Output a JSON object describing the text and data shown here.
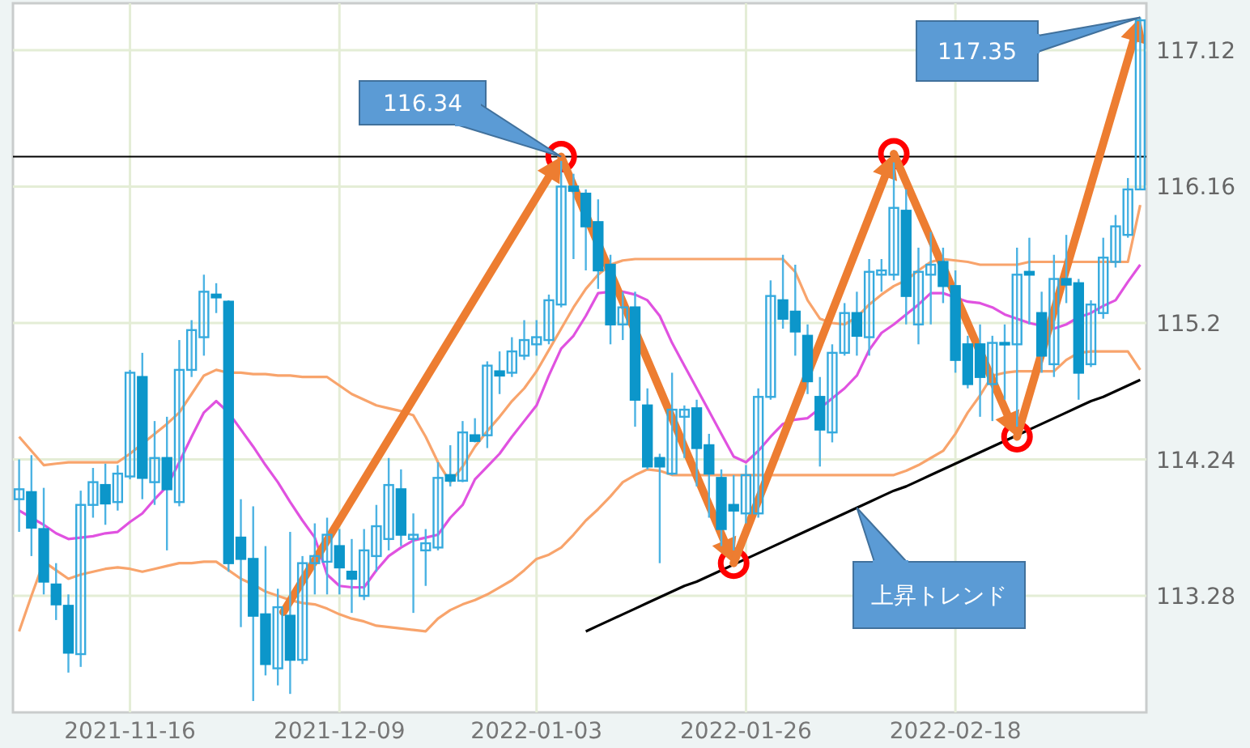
{
  "chart_data": {
    "type": "candlestick",
    "categories": [
      null,
      null,
      null,
      null,
      null,
      null,
      null,
      null,
      null,
      "2021-11-16",
      null,
      null,
      null,
      null,
      null,
      null,
      null,
      null,
      null,
      null,
      null,
      null,
      null,
      null,
      null,
      null,
      "2021-12-09",
      null,
      null,
      null,
      null,
      null,
      null,
      null,
      null,
      null,
      null,
      null,
      null,
      null,
      null,
      null,
      "2022-01-03",
      null,
      null,
      null,
      null,
      null,
      null,
      null,
      null,
      null,
      null,
      null,
      null,
      null,
      null,
      null,
      null,
      "2022-01-26",
      null,
      null,
      null,
      null,
      null,
      null,
      null,
      null,
      null,
      null,
      null,
      null,
      null,
      null,
      null,
      null,
      "2022-02-18",
      null,
      null,
      null,
      null,
      null,
      null,
      null,
      null,
      null,
      null,
      null,
      null,
      null,
      null,
      null
    ],
    "ohlc": [
      [
        113.96,
        114.24,
        113.73,
        114.03
      ],
      [
        114.01,
        114.27,
        113.56,
        113.76
      ],
      [
        113.75,
        114.04,
        113.29,
        113.38
      ],
      [
        113.36,
        113.51,
        113.11,
        113.22
      ],
      [
        113.21,
        113.29,
        112.74,
        112.88
      ],
      [
        112.87,
        114.02,
        112.78,
        113.92
      ],
      [
        113.92,
        114.18,
        113.83,
        114.08
      ],
      [
        114.06,
        114.21,
        113.78,
        113.93
      ],
      [
        113.94,
        114.2,
        113.88,
        114.14
      ],
      [
        114.12,
        114.87,
        114.1,
        114.85
      ],
      [
        114.82,
        114.99,
        113.96,
        114.11
      ],
      [
        114.08,
        114.51,
        113.92,
        114.25
      ],
      [
        114.25,
        114.54,
        113.6,
        114.03
      ],
      [
        113.94,
        115.08,
        113.91,
        114.87
      ],
      [
        114.87,
        115.22,
        114.82,
        115.15
      ],
      [
        115.1,
        115.54,
        114.97,
        115.42
      ],
      [
        115.4,
        115.48,
        115.27,
        115.38
      ],
      [
        115.35,
        115.36,
        113.45,
        113.51
      ],
      [
        113.69,
        113.96,
        113.06,
        113.54
      ],
      [
        113.54,
        113.91,
        112.54,
        113.14
      ],
      [
        113.15,
        113.63,
        112.72,
        112.8
      ],
      [
        112.77,
        113.33,
        112.65,
        113.2
      ],
      [
        113.14,
        113.73,
        112.59,
        112.83
      ],
      [
        112.83,
        113.56,
        112.8,
        113.51
      ],
      [
        113.51,
        113.79,
        113.29,
        113.56
      ],
      [
        113.52,
        113.83,
        113.29,
        113.71
      ],
      [
        113.63,
        113.75,
        113.29,
        113.48
      ],
      [
        113.45,
        113.68,
        113.16,
        113.4
      ],
      [
        113.28,
        113.75,
        113.25,
        113.6
      ],
      [
        113.56,
        113.92,
        113.45,
        113.77
      ],
      [
        113.68,
        114.25,
        113.6,
        114.06
      ],
      [
        114.03,
        114.17,
        113.63,
        113.71
      ],
      [
        113.68,
        113.86,
        113.16,
        113.71
      ],
      [
        113.6,
        113.75,
        113.35,
        113.65
      ],
      [
        113.62,
        114.22,
        113.6,
        114.11
      ],
      [
        114.13,
        114.34,
        114.05,
        114.09
      ],
      [
        114.09,
        114.51,
        114.08,
        114.43
      ],
      [
        114.41,
        114.53,
        114.36,
        114.37
      ],
      [
        114.41,
        114.93,
        114.32,
        114.9
      ],
      [
        114.86,
        115.0,
        114.7,
        114.83
      ],
      [
        114.85,
        115.1,
        114.82,
        115.0
      ],
      [
        114.97,
        115.22,
        114.94,
        115.08
      ],
      [
        115.05,
        115.22,
        114.97,
        115.1
      ],
      [
        115.08,
        115.4,
        115.05,
        115.36
      ],
      [
        115.33,
        116.34,
        115.31,
        116.16
      ],
      [
        116.16,
        116.25,
        115.65,
        116.13
      ],
      [
        116.11,
        116.14,
        115.57,
        115.88
      ],
      [
        115.91,
        116.07,
        115.44,
        115.57
      ],
      [
        115.61,
        115.68,
        115.05,
        115.19
      ],
      [
        115.19,
        115.42,
        115.08,
        115.31
      ],
      [
        115.31,
        115.42,
        114.47,
        114.66
      ],
      [
        114.62,
        114.74,
        114.17,
        114.19
      ],
      [
        114.25,
        114.28,
        113.51,
        114.19
      ],
      [
        114.14,
        114.85,
        114.13,
        114.59
      ],
      [
        114.54,
        114.62,
        114.25,
        114.59
      ],
      [
        114.6,
        114.66,
        114.05,
        114.32
      ],
      [
        114.34,
        114.42,
        113.83,
        114.14
      ],
      [
        114.11,
        114.17,
        113.63,
        113.75
      ],
      [
        113.92,
        114.13,
        113.6,
        113.88
      ],
      [
        113.86,
        114.2,
        113.79,
        114.13
      ],
      [
        113.86,
        114.74,
        113.83,
        114.68
      ],
      [
        114.68,
        115.5,
        114.66,
        115.39
      ],
      [
        115.36,
        115.68,
        115.16,
        115.23
      ],
      [
        115.28,
        115.61,
        114.97,
        115.14
      ],
      [
        115.11,
        115.19,
        114.7,
        114.79
      ],
      [
        114.68,
        114.82,
        114.19,
        114.45
      ],
      [
        114.43,
        115.05,
        114.36,
        114.99
      ],
      [
        114.99,
        115.34,
        114.97,
        115.27
      ],
      [
        115.27,
        115.42,
        114.97,
        115.11
      ],
      [
        115.1,
        115.65,
        114.97,
        115.56
      ],
      [
        115.54,
        115.65,
        115.42,
        115.57
      ],
      [
        115.54,
        116.33,
        115.5,
        116.01
      ],
      [
        115.99,
        116.14,
        115.19,
        115.39
      ],
      [
        115.19,
        115.73,
        115.05,
        115.56
      ],
      [
        115.54,
        115.84,
        115.19,
        115.61
      ],
      [
        115.63,
        115.73,
        115.34,
        115.46
      ],
      [
        115.46,
        115.57,
        114.85,
        114.94
      ],
      [
        115.05,
        115.11,
        114.74,
        114.77
      ],
      [
        115.05,
        115.19,
        114.54,
        114.82
      ],
      [
        114.77,
        115.11,
        114.51,
        115.06
      ],
      [
        115.06,
        115.19,
        114.66,
        115.05
      ],
      [
        115.05,
        115.73,
        114.47,
        115.54
      ],
      [
        115.56,
        115.8,
        115.19,
        115.54
      ],
      [
        115.27,
        115.42,
        114.85,
        114.97
      ],
      [
        114.91,
        115.68,
        114.82,
        115.51
      ],
      [
        115.51,
        115.82,
        115.34,
        115.47
      ],
      [
        115.48,
        115.51,
        114.66,
        114.85
      ],
      [
        114.91,
        115.36,
        114.89,
        115.33
      ],
      [
        115.27,
        115.8,
        115.23,
        115.66
      ],
      [
        115.63,
        115.96,
        115.59,
        115.88
      ],
      [
        115.82,
        116.22,
        115.8,
        116.14
      ],
      [
        116.14,
        117.35,
        116.14,
        117.33
      ]
    ],
    "series": [
      {
        "type": "line",
        "color": "#f8a46c",
        "values": [
          114.4,
          114.3,
          114.2,
          114.21,
          114.22,
          114.22,
          114.22,
          114.22,
          114.22,
          114.28,
          114.35,
          114.42,
          114.49,
          114.57,
          114.7,
          114.83,
          114.87,
          114.85,
          114.85,
          114.84,
          114.84,
          114.83,
          114.83,
          114.82,
          114.82,
          114.82,
          114.76,
          114.7,
          114.66,
          114.62,
          114.6,
          114.58,
          114.55,
          114.4,
          114.22,
          114.08,
          114.19,
          114.33,
          114.44,
          114.54,
          114.65,
          114.74,
          114.86,
          115.01,
          115.16,
          115.31,
          115.44,
          115.54,
          115.61,
          115.64,
          115.65,
          115.65,
          115.65,
          115.65,
          115.65,
          115.65,
          115.65,
          115.65,
          115.65,
          115.65,
          115.65,
          115.65,
          115.65,
          115.56,
          115.36,
          115.23,
          115.2,
          115.19,
          115.24,
          115.33,
          115.4,
          115.46,
          115.5,
          115.57,
          115.63,
          115.65,
          115.64,
          115.63,
          115.61,
          115.61,
          115.61,
          115.61,
          115.63,
          115.63,
          115.63,
          115.63,
          115.63,
          115.63,
          115.63,
          115.63,
          115.63,
          116.03
        ]
      },
      {
        "type": "line",
        "color": "#e052e0",
        "values": [
          113.88,
          113.83,
          113.78,
          113.72,
          113.68,
          113.69,
          113.7,
          113.72,
          113.73,
          113.8,
          113.86,
          113.96,
          114.05,
          114.22,
          114.4,
          114.57,
          114.65,
          114.57,
          114.45,
          114.33,
          114.2,
          114.08,
          113.94,
          113.81,
          113.69,
          113.43,
          113.35,
          113.34,
          113.34,
          113.46,
          113.56,
          113.62,
          113.67,
          113.69,
          113.71,
          113.83,
          113.92,
          114.1,
          114.19,
          114.28,
          114.4,
          114.51,
          114.62,
          114.83,
          115.02,
          115.11,
          115.25,
          115.41,
          115.42,
          115.42,
          115.4,
          115.36,
          115.25,
          115.06,
          114.9,
          114.74,
          114.58,
          114.42,
          114.26,
          114.22,
          114.3,
          114.4,
          114.49,
          114.52,
          114.53,
          114.6,
          114.67,
          114.74,
          114.83,
          115.01,
          115.13,
          115.19,
          115.26,
          115.33,
          115.41,
          115.41,
          115.38,
          115.35,
          115.34,
          115.31,
          115.26,
          115.23,
          115.2,
          115.18,
          115.16,
          115.19,
          115.24,
          115.27,
          115.32,
          115.36,
          115.49,
          115.61
        ]
      },
      {
        "type": "line",
        "color": "#f8a46c",
        "values": [
          113.03,
          113.28,
          113.52,
          113.46,
          113.4,
          113.43,
          113.45,
          113.47,
          113.48,
          113.47,
          113.45,
          113.47,
          113.49,
          113.51,
          113.51,
          113.52,
          113.52,
          113.46,
          113.4,
          113.36,
          113.31,
          113.28,
          113.25,
          113.23,
          113.22,
          113.19,
          113.15,
          113.12,
          113.1,
          113.07,
          113.06,
          113.05,
          113.04,
          113.03,
          113.12,
          113.18,
          113.22,
          113.25,
          113.29,
          113.34,
          113.39,
          113.46,
          113.54,
          113.57,
          113.62,
          113.71,
          113.81,
          113.89,
          113.98,
          114.08,
          114.13,
          114.17,
          114.16,
          114.13,
          114.13,
          114.13,
          114.13,
          114.13,
          114.13,
          114.13,
          114.13,
          114.13,
          114.13,
          114.13,
          114.13,
          114.13,
          114.13,
          114.13,
          114.13,
          114.13,
          114.13,
          114.13,
          114.16,
          114.2,
          114.25,
          114.3,
          114.42,
          114.57,
          114.69,
          114.83,
          114.85,
          114.86,
          114.86,
          114.86,
          114.86,
          114.94,
          114.99,
          115.0,
          115.0,
          115.0,
          115.0,
          114.87
        ]
      },
      {
        "type": "line",
        "color": "#000000",
        "values": [
          null,
          null,
          null,
          null,
          null,
          null,
          null,
          null,
          null,
          null,
          null,
          null,
          null,
          null,
          null,
          null,
          null,
          null,
          null,
          null,
          null,
          null,
          null,
          null,
          null,
          null,
          null,
          null,
          null,
          null,
          null,
          null,
          null,
          null,
          null,
          null,
          null,
          null,
          null,
          null,
          null,
          null,
          null,
          null,
          null,
          null,
          113.03,
          113.07,
          113.11,
          113.15,
          113.19,
          113.23,
          113.27,
          113.31,
          113.35,
          113.38,
          113.42,
          113.46,
          113.5,
          113.54,
          113.58,
          113.62,
          113.66,
          113.7,
          113.74,
          113.78,
          113.82,
          113.86,
          113.9,
          113.94,
          113.98,
          114.02,
          114.05,
          114.09,
          114.13,
          114.17,
          114.21,
          114.25,
          114.29,
          114.33,
          114.37,
          114.41,
          114.45,
          114.49,
          114.53,
          114.57,
          114.61,
          114.65,
          114.68,
          114.72,
          114.76,
          114.8
        ]
      },
      {
        "type": "scatter",
        "color": "#ff0000",
        "marker": "circle",
        "values": [
          null,
          null,
          null,
          null,
          null,
          null,
          null,
          null,
          null,
          null,
          null,
          null,
          null,
          null,
          null,
          null,
          null,
          null,
          null,
          null,
          null,
          null,
          null,
          null,
          null,
          null,
          null,
          null,
          null,
          null,
          null,
          null,
          null,
          null,
          null,
          null,
          null,
          null,
          null,
          null,
          null,
          null,
          null,
          null,
          116.37,
          null,
          null,
          null,
          null,
          null,
          null,
          null,
          null,
          null,
          null,
          null,
          null,
          null,
          113.51,
          null,
          null,
          null,
          null,
          null,
          null,
          null,
          null,
          null,
          null,
          null,
          null,
          116.39,
          null,
          null,
          null,
          null,
          null,
          null,
          null,
          null,
          null,
          114.4,
          null,
          null,
          null,
          null,
          null,
          null,
          null,
          null,
          null,
          null
        ]
      }
    ],
    "ylim": [
      112.46,
      117.45
    ],
    "yticks": [
      113.28,
      114.24,
      115.2,
      116.16,
      117.12
    ],
    "grid": true,
    "ref_lines": [
      {
        "axis": "y",
        "value": 116.37,
        "color": "#000000"
      }
    ],
    "annotations": [
      "116.34",
      "117.35",
      "上昇トレンド"
    ]
  }
}
